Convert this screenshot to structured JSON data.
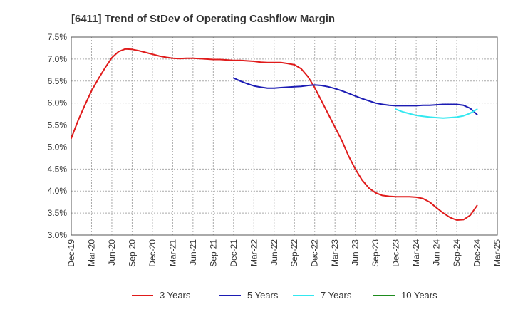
{
  "chart_data": {
    "type": "line",
    "title": "[6411]  Trend of StDev of Operating Cashflow Margin",
    "xlabel": "",
    "ylabel": "",
    "x_ticks": [
      "Dec-19",
      "Mar-20",
      "Jun-20",
      "Sep-20",
      "Dec-20",
      "Mar-21",
      "Jun-21",
      "Sep-21",
      "Dec-21",
      "Mar-22",
      "Jun-22",
      "Sep-22",
      "Dec-22",
      "Mar-23",
      "Jun-23",
      "Sep-23",
      "Dec-23",
      "Mar-24",
      "Jun-24",
      "Sep-24",
      "Dec-24",
      "Mar-25"
    ],
    "y_ticks": [
      "3.0%",
      "3.5%",
      "4.0%",
      "4.5%",
      "5.0%",
      "5.5%",
      "6.0%",
      "6.5%",
      "7.0%",
      "7.5%"
    ],
    "ylim": [
      3.0,
      7.5
    ],
    "grid": true,
    "legend_position": "bottom",
    "series": [
      {
        "name": "3 Years",
        "color": "#e01b1b",
        "points": [
          [
            "Dec-19",
            5.2
          ],
          [
            "Jan-20",
            5.6
          ],
          [
            "Feb-20",
            5.95
          ],
          [
            "Mar-20",
            6.28
          ],
          [
            "Apr-20",
            6.55
          ],
          [
            "May-20",
            6.8
          ],
          [
            "Jun-20",
            7.03
          ],
          [
            "Jul-20",
            7.17
          ],
          [
            "Aug-20",
            7.23
          ],
          [
            "Sep-20",
            7.22
          ],
          [
            "Oct-20",
            7.19
          ],
          [
            "Nov-20",
            7.15
          ],
          [
            "Dec-20",
            7.11
          ],
          [
            "Jan-21",
            7.07
          ],
          [
            "Feb-21",
            7.04
          ],
          [
            "Mar-21",
            7.02
          ],
          [
            "Apr-21",
            7.01
          ],
          [
            "May-21",
            7.02
          ],
          [
            "Jun-21",
            7.02
          ],
          [
            "Jul-21",
            7.01
          ],
          [
            "Aug-21",
            7.0
          ],
          [
            "Sep-21",
            6.99
          ],
          [
            "Oct-21",
            6.99
          ],
          [
            "Nov-21",
            6.98
          ],
          [
            "Dec-21",
            6.97
          ],
          [
            "Jan-22",
            6.97
          ],
          [
            "Feb-22",
            6.96
          ],
          [
            "Mar-22",
            6.95
          ],
          [
            "Apr-22",
            6.93
          ],
          [
            "May-22",
            6.92
          ],
          [
            "Jun-22",
            6.92
          ],
          [
            "Jul-22",
            6.92
          ],
          [
            "Aug-22",
            6.9
          ],
          [
            "Sep-22",
            6.87
          ],
          [
            "Oct-22",
            6.78
          ],
          [
            "Nov-22",
            6.6
          ],
          [
            "Dec-22",
            6.35
          ],
          [
            "Jan-23",
            6.05
          ],
          [
            "Feb-23",
            5.75
          ],
          [
            "Mar-23",
            5.45
          ],
          [
            "Apr-23",
            5.15
          ],
          [
            "May-23",
            4.8
          ],
          [
            "Jun-23",
            4.5
          ],
          [
            "Jul-23",
            4.25
          ],
          [
            "Aug-23",
            4.07
          ],
          [
            "Sep-23",
            3.96
          ],
          [
            "Oct-23",
            3.9
          ],
          [
            "Nov-23",
            3.88
          ],
          [
            "Dec-23",
            3.87
          ],
          [
            "Jan-24",
            3.87
          ],
          [
            "Feb-24",
            3.87
          ],
          [
            "Mar-24",
            3.86
          ],
          [
            "Apr-24",
            3.83
          ],
          [
            "May-24",
            3.75
          ],
          [
            "Jun-24",
            3.62
          ],
          [
            "Jul-24",
            3.5
          ],
          [
            "Aug-24",
            3.4
          ],
          [
            "Sep-24",
            3.34
          ],
          [
            "Oct-24",
            3.35
          ],
          [
            "Nov-24",
            3.45
          ],
          [
            "Dec-24",
            3.67
          ]
        ]
      },
      {
        "name": "5 Years",
        "color": "#1c1cb4",
        "points": [
          [
            "Dec-21",
            6.57
          ],
          [
            "Jan-22",
            6.5
          ],
          [
            "Feb-22",
            6.44
          ],
          [
            "Mar-22",
            6.39
          ],
          [
            "Apr-22",
            6.36
          ],
          [
            "May-22",
            6.34
          ],
          [
            "Jun-22",
            6.34
          ],
          [
            "Jul-22",
            6.35
          ],
          [
            "Aug-22",
            6.36
          ],
          [
            "Sep-22",
            6.37
          ],
          [
            "Oct-22",
            6.38
          ],
          [
            "Nov-22",
            6.4
          ],
          [
            "Dec-22",
            6.41
          ],
          [
            "Jan-23",
            6.4
          ],
          [
            "Feb-23",
            6.37
          ],
          [
            "Mar-23",
            6.33
          ],
          [
            "Apr-23",
            6.28
          ],
          [
            "May-23",
            6.22
          ],
          [
            "Jun-23",
            6.16
          ],
          [
            "Jul-23",
            6.1
          ],
          [
            "Aug-23",
            6.05
          ],
          [
            "Sep-23",
            6.0
          ],
          [
            "Oct-23",
            5.97
          ],
          [
            "Nov-23",
            5.95
          ],
          [
            "Dec-23",
            5.94
          ],
          [
            "Jan-24",
            5.94
          ],
          [
            "Feb-24",
            5.94
          ],
          [
            "Mar-24",
            5.94
          ],
          [
            "Apr-24",
            5.95
          ],
          [
            "May-24",
            5.95
          ],
          [
            "Jun-24",
            5.96
          ],
          [
            "Jul-24",
            5.97
          ],
          [
            "Aug-24",
            5.97
          ],
          [
            "Sep-24",
            5.97
          ],
          [
            "Oct-24",
            5.95
          ],
          [
            "Nov-24",
            5.88
          ],
          [
            "Dec-24",
            5.74
          ]
        ]
      },
      {
        "name": "7 Years",
        "color": "#33e8f0",
        "points": [
          [
            "Dec-23",
            5.86
          ],
          [
            "Jan-24",
            5.8
          ],
          [
            "Feb-24",
            5.76
          ],
          [
            "Mar-24",
            5.72
          ],
          [
            "Apr-24",
            5.7
          ],
          [
            "May-24",
            5.68
          ],
          [
            "Jun-24",
            5.67
          ],
          [
            "Jul-24",
            5.66
          ],
          [
            "Aug-24",
            5.67
          ],
          [
            "Sep-24",
            5.68
          ],
          [
            "Oct-24",
            5.71
          ],
          [
            "Nov-24",
            5.77
          ],
          [
            "Dec-24",
            5.86
          ]
        ]
      },
      {
        "name": "10 Years",
        "color": "#1e8c1e",
        "points": []
      }
    ]
  }
}
